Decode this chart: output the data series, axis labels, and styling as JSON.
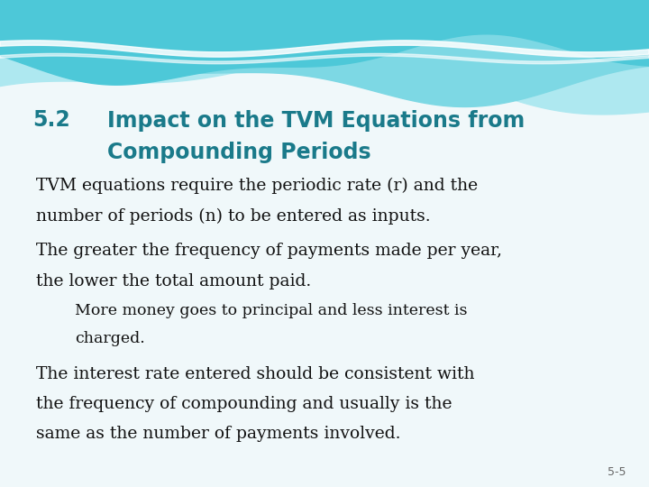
{
  "background_color": "#f0f8fa",
  "heading_number": "5.2",
  "heading_text_line1": "Impact on the TVM Equations from",
  "heading_text_line2": "Compounding Periods",
  "heading_color": "#1a7a8a",
  "heading_fontsize": 17,
  "body_color": "#111111",
  "body_fontsize": 13.5,
  "indent_fontsize": 12.5,
  "bullet1_line1": "TVM equations require the periodic rate (r) and the",
  "bullet1_line2": "number of periods (n) to be entered as inputs.",
  "bullet2_line1": "The greater the frequency of payments made per year,",
  "bullet2_line2": "the lower the total amount paid.",
  "sub_bullet1": "More money goes to principal and less interest is",
  "sub_bullet2": "charged.",
  "bullet3_line1": "The interest rate entered should be consistent with",
  "bullet3_line2": "the frequency of compounding and usually is the",
  "bullet3_line3": "same as the number of payments involved.",
  "page_number": "5-5",
  "page_num_color": "#666666",
  "page_num_fontsize": 9,
  "wave_top_color": "#4dc8d8",
  "wave_mid_color": "#7dd8e4",
  "wave_bot_color": "#aee8f0"
}
